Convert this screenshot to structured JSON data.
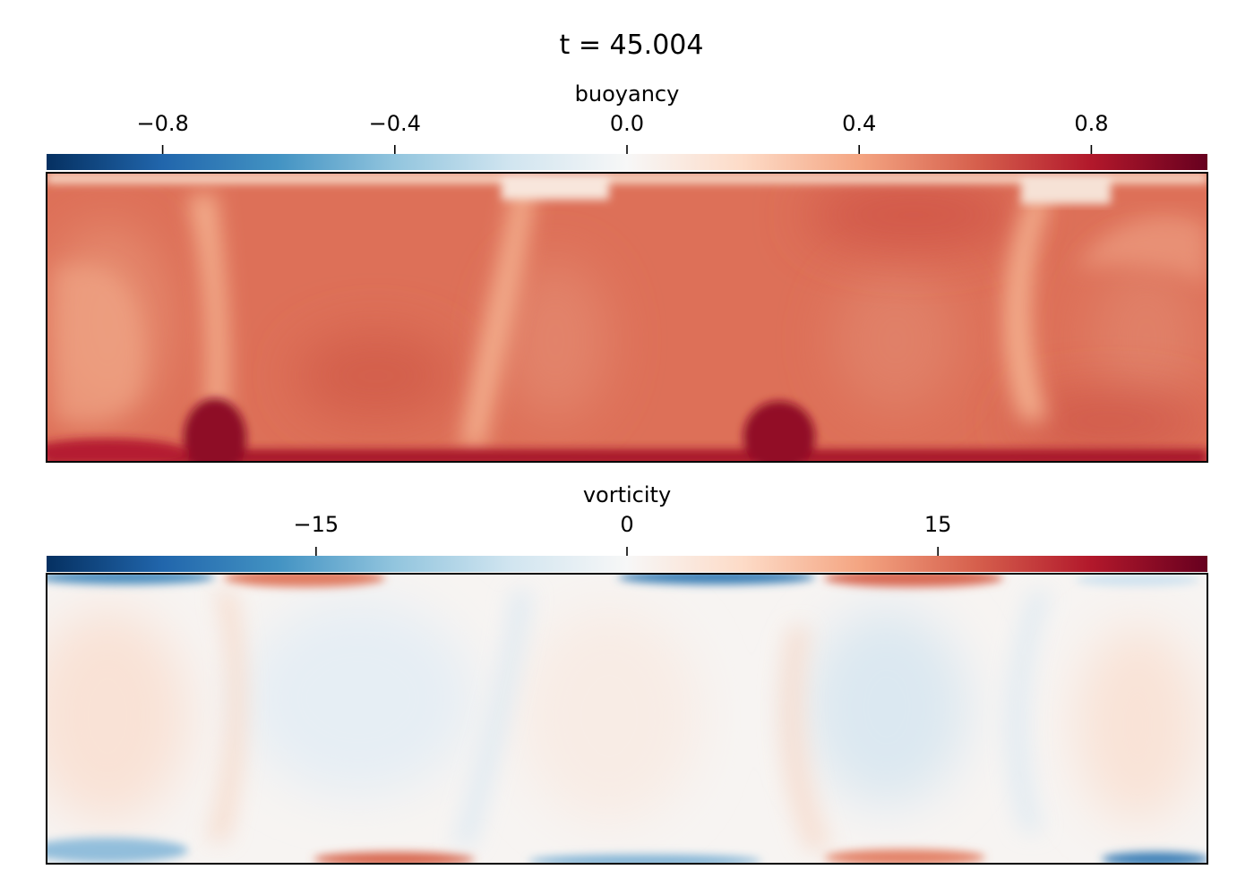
{
  "figure": {
    "title": "t = 45.004"
  },
  "colormap": {
    "name": "RdBu_r",
    "stops": [
      "#053061",
      "#2166ac",
      "#4393c3",
      "#92c5de",
      "#d1e5f0",
      "#f7f7f7",
      "#fddbc7",
      "#f4a582",
      "#d6604d",
      "#b2182b",
      "#67001f"
    ]
  },
  "chart_data": [
    {
      "type": "heatmap",
      "field": "buoyancy",
      "colorbar": {
        "label": "buoyancy",
        "range": [
          -1.0,
          1.0
        ],
        "ticks": [
          -0.8,
          -0.4,
          0.0,
          0.4,
          0.8
        ],
        "tick_labels": [
          "−0.8",
          "−0.4",
          "0.0",
          "0.4",
          "0.8"
        ],
        "placement": "top"
      },
      "axes": {
        "xticks": "none",
        "yticks": "none"
      },
      "description_values": {
        "interior_typical": 0.6,
        "thin_plumes": 0.35,
        "bottom_boundary": 0.95,
        "top_boundary": 0.25
      }
    },
    {
      "type": "heatmap",
      "field": "vorticity",
      "colorbar": {
        "label": "vorticity",
        "range": [
          -28,
          28
        ],
        "ticks": [
          -15,
          0,
          15
        ],
        "tick_labels": [
          "−15",
          "0",
          "15"
        ],
        "placement": "top"
      },
      "axes": {
        "xticks": "none",
        "yticks": "none"
      },
      "description_values": {
        "cell_interior_abs": 2,
        "boundary_extremes_abs": 22
      }
    }
  ]
}
